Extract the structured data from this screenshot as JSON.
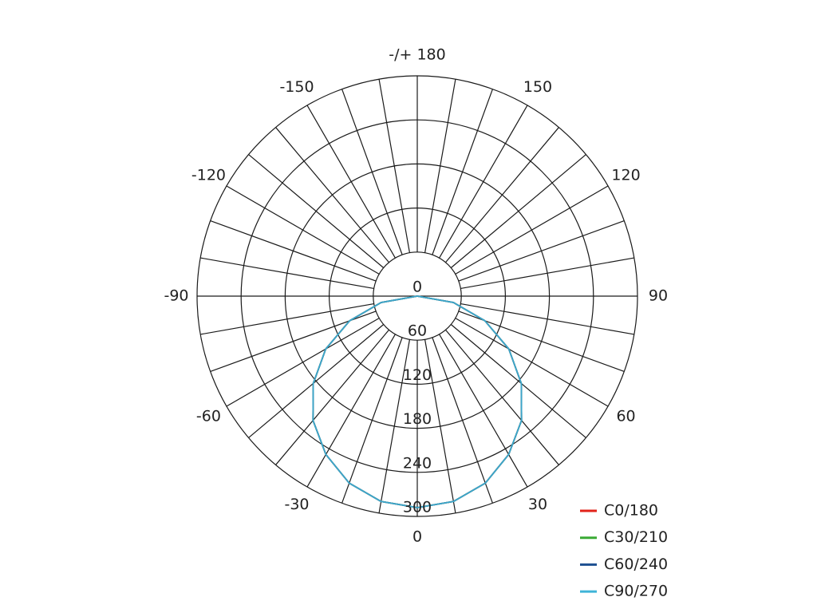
{
  "chart_data": {
    "type": "polar",
    "x": [
      -90,
      -80,
      -70,
      -60,
      -50,
      -40,
      -30,
      -20,
      -10,
      0,
      10,
      20,
      30,
      40,
      50,
      60,
      70,
      80,
      90
    ],
    "series": [
      {
        "name": "C0/180",
        "color": "#e2231a",
        "values": [
          0,
          50,
          98,
          144,
          185,
          221,
          249,
          271,
          284,
          288,
          284,
          271,
          249,
          221,
          185,
          144,
          98,
          50,
          0
        ]
      },
      {
        "name": "C30/210",
        "color": "#3aaa35",
        "values": [
          0,
          50,
          98,
          144,
          185,
          221,
          249,
          271,
          284,
          288,
          284,
          271,
          249,
          221,
          185,
          144,
          98,
          50,
          0
        ]
      },
      {
        "name": "C60/240",
        "color": "#1d4f91",
        "values": [
          0,
          50,
          98,
          144,
          185,
          221,
          249,
          271,
          284,
          288,
          284,
          271,
          249,
          221,
          185,
          144,
          98,
          50,
          0
        ]
      },
      {
        "name": "C90/270",
        "color": "#3fb4d8",
        "values": [
          0,
          50,
          98,
          144,
          185,
          221,
          249,
          271,
          284,
          288,
          284,
          271,
          249,
          221,
          185,
          144,
          98,
          50,
          0
        ]
      }
    ],
    "rlim": [
      0,
      300
    ],
    "rticks": [
      0,
      60,
      120,
      180,
      240,
      300
    ],
    "xticks": [
      -150,
      -120,
      -90,
      -60,
      -30,
      0,
      30,
      60,
      90,
      120,
      150,
      {
        "value": 180,
        "label": "-/+ 180"
      }
    ],
    "grid": true,
    "legend": "lower right"
  }
}
